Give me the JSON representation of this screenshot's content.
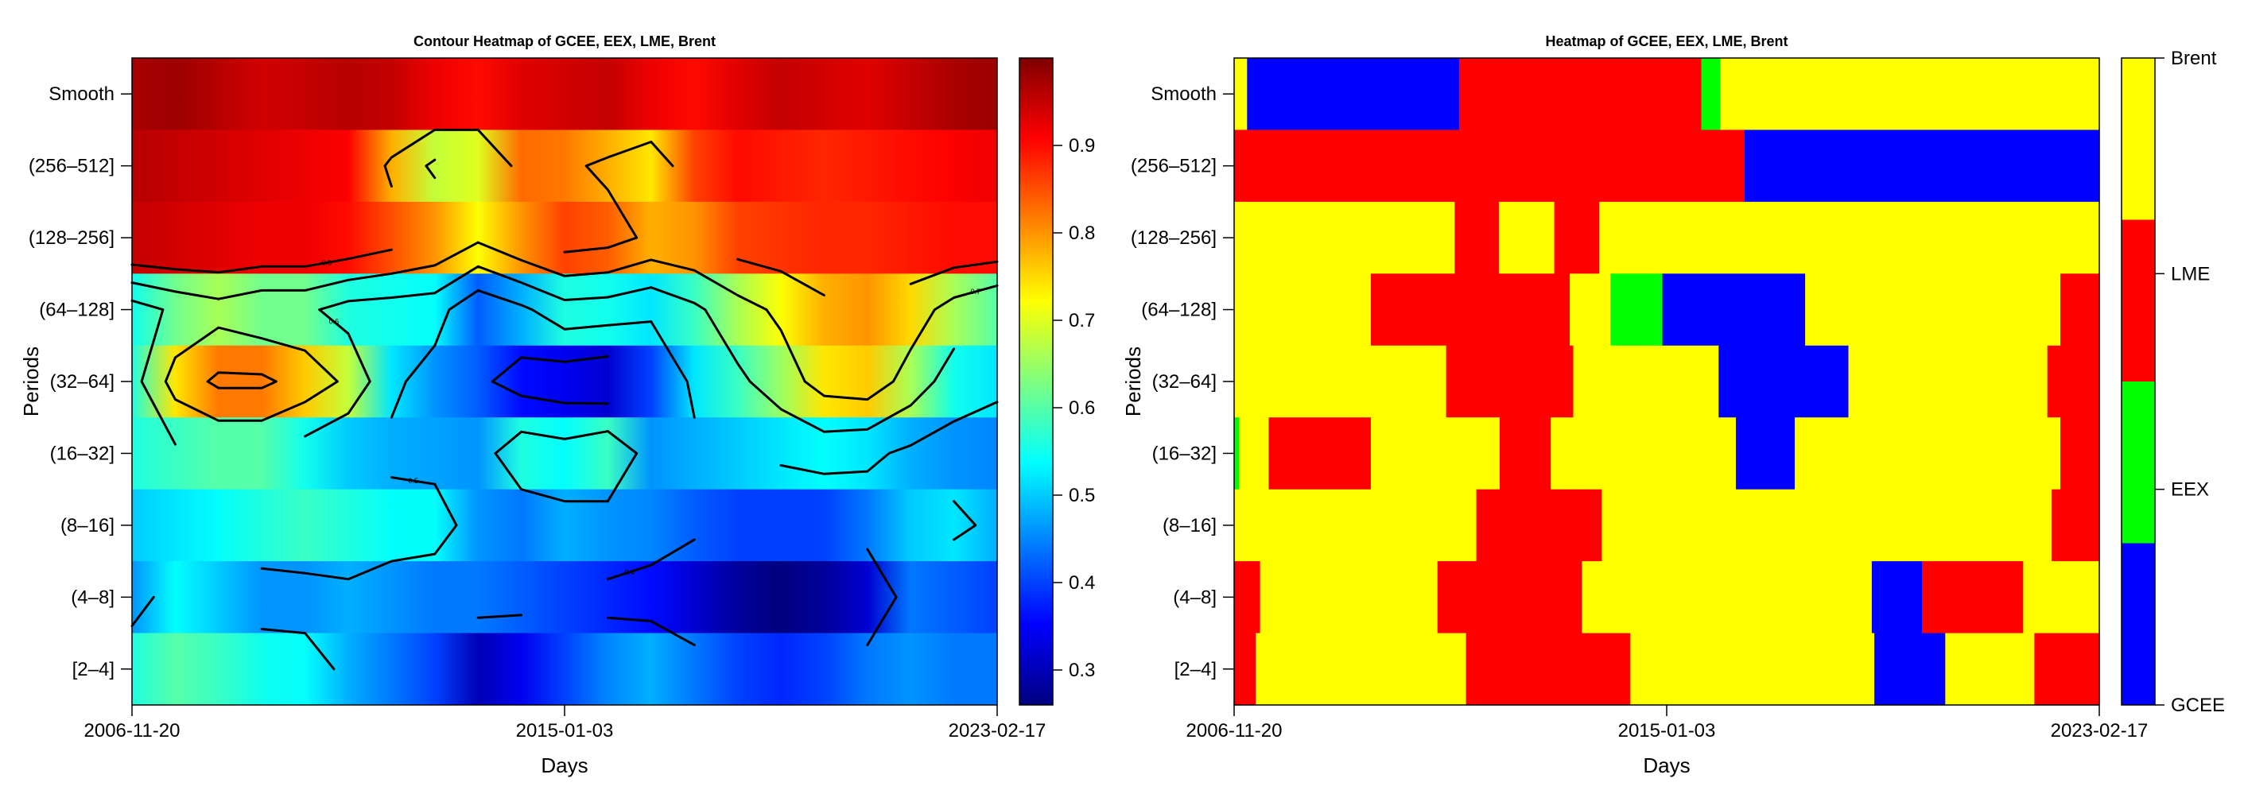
{
  "colors": {
    "GCEE": "#0000ff",
    "EEX": "#00ff00",
    "LME": "#ff0000",
    "Brent": "#ffff00",
    "contour_line": "#000000"
  },
  "chart_data": [
    {
      "type": "heatmap",
      "title": "Contour Heatmap of GCEE, EEX, LME, Brent",
      "xlabel": "Days",
      "ylabel": "Periods",
      "x_ticks": [
        "2006-11-20",
        "2015-01-03",
        "2023-02-17"
      ],
      "y_categories": [
        "Smooth",
        "(256–512]",
        "(128–256]",
        "(64–128]",
        "(32–64]",
        "(16–32]",
        "(8–16]",
        "(4–8]",
        "[2–4]"
      ],
      "colorbar": {
        "range": [
          0.26,
          1.0
        ],
        "ticks": [
          0.3,
          0.4,
          0.5,
          0.6,
          0.7,
          0.8,
          0.9
        ]
      },
      "colormap": [
        "#00007f",
        "#0000ff",
        "#007fff",
        "#00ffff",
        "#7fff7f",
        "#ffff00",
        "#ff7f00",
        "#ff0000",
        "#7f0000"
      ],
      "contour_levels": [
        0.4,
        0.5,
        0.6,
        0.7,
        0.8
      ],
      "x_fraction": [
        0.0,
        0.05,
        0.1,
        0.15,
        0.2,
        0.25,
        0.3,
        0.35,
        0.4,
        0.45,
        0.5,
        0.55,
        0.6,
        0.65,
        0.7,
        0.75,
        0.8,
        0.85,
        0.9,
        0.95,
        1.0
      ],
      "z": [
        [
          0.97,
          0.98,
          0.96,
          0.94,
          0.95,
          0.96,
          0.95,
          0.92,
          0.9,
          0.93,
          0.94,
          0.95,
          0.92,
          0.9,
          0.93,
          0.95,
          0.94,
          0.93,
          0.95,
          0.97,
          0.98
        ],
        [
          0.96,
          0.95,
          0.94,
          0.93,
          0.92,
          0.91,
          0.78,
          0.68,
          0.7,
          0.83,
          0.82,
          0.78,
          0.74,
          0.86,
          0.9,
          0.89,
          0.88,
          0.89,
          0.9,
          0.91,
          0.92
        ],
        [
          0.95,
          0.94,
          0.93,
          0.92,
          0.92,
          0.9,
          0.85,
          0.8,
          0.72,
          0.8,
          0.86,
          0.84,
          0.78,
          0.8,
          0.86,
          0.87,
          0.88,
          0.88,
          0.89,
          0.9,
          0.9
        ],
        [
          0.55,
          0.62,
          0.66,
          0.62,
          0.62,
          0.56,
          0.55,
          0.54,
          0.42,
          0.48,
          0.56,
          0.55,
          0.52,
          0.58,
          0.66,
          0.72,
          0.78,
          0.8,
          0.75,
          0.66,
          0.6
        ],
        [
          0.56,
          0.74,
          0.82,
          0.82,
          0.76,
          0.68,
          0.52,
          0.46,
          0.42,
          0.36,
          0.34,
          0.32,
          0.4,
          0.52,
          0.58,
          0.65,
          0.74,
          0.76,
          0.66,
          0.55,
          0.52
        ],
        [
          0.56,
          0.58,
          0.6,
          0.6,
          0.55,
          0.5,
          0.48,
          0.47,
          0.46,
          0.56,
          0.54,
          0.58,
          0.46,
          0.48,
          0.5,
          0.52,
          0.54,
          0.52,
          0.48,
          0.46,
          0.45
        ],
        [
          0.5,
          0.52,
          0.54,
          0.56,
          0.58,
          0.56,
          0.54,
          0.54,
          0.46,
          0.44,
          0.48,
          0.46,
          0.45,
          0.42,
          0.4,
          0.4,
          0.4,
          0.44,
          0.5,
          0.52,
          0.48
        ],
        [
          0.46,
          0.54,
          0.5,
          0.46,
          0.46,
          0.48,
          0.46,
          0.44,
          0.44,
          0.42,
          0.4,
          0.38,
          0.36,
          0.32,
          0.28,
          0.26,
          0.28,
          0.32,
          0.44,
          0.42,
          0.4
        ],
        [
          0.56,
          0.6,
          0.58,
          0.55,
          0.54,
          0.48,
          0.44,
          0.4,
          0.3,
          0.34,
          0.4,
          0.45,
          0.48,
          0.44,
          0.4,
          0.38,
          0.4,
          0.44,
          0.46,
          0.44,
          0.44
        ]
      ],
      "contour_label_text": [
        "0.4",
        "0.5",
        "0.6",
        "0.7",
        "0.8"
      ]
    },
    {
      "type": "heatmap",
      "title": "Heatmap of GCEE, EEX, LME, Brent",
      "xlabel": "Days",
      "ylabel": "Periods",
      "x_ticks": [
        "2006-11-20",
        "2015-01-03",
        "2023-02-17"
      ],
      "y_categories": [
        "Smooth",
        "(256–512]",
        "(128–256]",
        "(64–128]",
        "(32–64]",
        "(16–32]",
        "(8–16]",
        "(4–8]",
        "[2–4]"
      ],
      "legend": [
        "GCEE",
        "EEX",
        "LME",
        "Brent"
      ],
      "legend_position": "right",
      "segments_note": "per row: [start_fraction, end_fraction, category]",
      "rows": [
        [
          [
            0.0,
            0.015,
            "Brent"
          ],
          [
            0.015,
            0.26,
            "GCEE"
          ],
          [
            0.26,
            0.54,
            "LME"
          ],
          [
            0.54,
            0.562,
            "EEX"
          ],
          [
            0.562,
            1.0,
            "Brent"
          ]
        ],
        [
          [
            0.0,
            0.59,
            "LME"
          ],
          [
            0.59,
            1.0,
            "GCEE"
          ]
        ],
        [
          [
            0.0,
            0.255,
            "Brent"
          ],
          [
            0.255,
            0.306,
            "LME"
          ],
          [
            0.306,
            0.37,
            "Brent"
          ],
          [
            0.37,
            0.422,
            "LME"
          ],
          [
            0.422,
            1.0,
            "Brent"
          ]
        ],
        [
          [
            0.0,
            0.158,
            "Brent"
          ],
          [
            0.158,
            0.388,
            "LME"
          ],
          [
            0.388,
            0.435,
            "Brent"
          ],
          [
            0.435,
            0.495,
            "EEX"
          ],
          [
            0.495,
            0.66,
            "GCEE"
          ],
          [
            0.66,
            0.955,
            "Brent"
          ],
          [
            0.955,
            1.0,
            "LME"
          ]
        ],
        [
          [
            0.0,
            0.245,
            "Brent"
          ],
          [
            0.245,
            0.392,
            "LME"
          ],
          [
            0.392,
            0.56,
            "Brent"
          ],
          [
            0.56,
            0.71,
            "GCEE"
          ],
          [
            0.71,
            0.94,
            "Brent"
          ],
          [
            0.94,
            1.0,
            "LME"
          ]
        ],
        [
          [
            0.0,
            0.006,
            "EEX"
          ],
          [
            0.006,
            0.04,
            "Brent"
          ],
          [
            0.04,
            0.158,
            "LME"
          ],
          [
            0.158,
            0.307,
            "Brent"
          ],
          [
            0.307,
            0.366,
            "LME"
          ],
          [
            0.366,
            0.58,
            "Brent"
          ],
          [
            0.58,
            0.648,
            "GCEE"
          ],
          [
            0.648,
            0.955,
            "Brent"
          ],
          [
            0.955,
            1.0,
            "LME"
          ]
        ],
        [
          [
            0.0,
            0.28,
            "Brent"
          ],
          [
            0.28,
            0.425,
            "LME"
          ],
          [
            0.425,
            0.945,
            "Brent"
          ],
          [
            0.945,
            1.0,
            "LME"
          ]
        ],
        [
          [
            0.0,
            0.03,
            "LME"
          ],
          [
            0.03,
            0.235,
            "Brent"
          ],
          [
            0.235,
            0.402,
            "LME"
          ],
          [
            0.402,
            0.737,
            "Brent"
          ],
          [
            0.737,
            0.795,
            "GCEE"
          ],
          [
            0.795,
            0.912,
            "LME"
          ],
          [
            0.912,
            1.0,
            "Brent"
          ]
        ],
        [
          [
            0.0,
            0.025,
            "LME"
          ],
          [
            0.025,
            0.268,
            "Brent"
          ],
          [
            0.268,
            0.458,
            "LME"
          ],
          [
            0.458,
            0.74,
            "Brent"
          ],
          [
            0.74,
            0.822,
            "GCEE"
          ],
          [
            0.822,
            0.925,
            "Brent"
          ],
          [
            0.925,
            1.0,
            "LME"
          ]
        ]
      ]
    }
  ]
}
